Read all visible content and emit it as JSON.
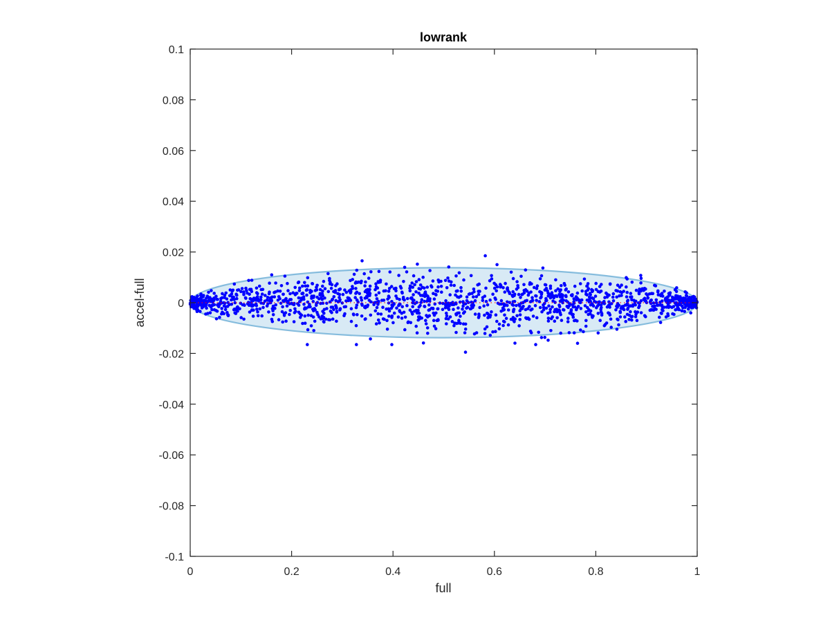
{
  "chart_data": {
    "type": "scatter",
    "title": "lowrank",
    "xlabel": "full",
    "ylabel": "accel-full",
    "xlim": [
      0,
      1
    ],
    "ylim": [
      -0.1,
      0.1
    ],
    "x_ticks": [
      0,
      0.2,
      0.4,
      0.6,
      0.8,
      1
    ],
    "x_tick_labels": [
      "0",
      "0.2",
      "0.4",
      "0.6",
      "0.8",
      "1"
    ],
    "y_ticks": [
      0.1,
      0.08,
      0.06,
      0.04,
      0.02,
      0,
      -0.02,
      -0.04,
      -0.06,
      -0.08,
      -0.1
    ],
    "y_tick_labels": [
      "0.1",
      "0.08",
      "0.06",
      "0.04",
      "0.02",
      "0",
      "-0.02",
      "-0.04",
      "-0.06",
      "-0.08",
      "-0.1"
    ],
    "grid": false,
    "box": true,
    "reference_line": {
      "y": 0,
      "style": "dotted",
      "color": "#ff0000"
    },
    "confidence_ellipse": {
      "center": [
        0.5,
        0
      ],
      "x_semi_axis": 0.5,
      "y_semi_axis": 0.0138,
      "fill": "#d6e9f5",
      "stroke": "#7fb9dc"
    },
    "series": [
      {
        "marker_color": "#0000ff",
        "marker": "filled-dot",
        "point_count": 1600,
        "distribution": "residual y spread proportional to sqrt(x(1-x)), max |y| approx 0.019",
        "notable_points": [
          [
            0.582,
            0.0185
          ],
          [
            0.543,
            -0.0195
          ],
          [
            0.231,
            -0.0165
          ],
          [
            0.448,
            0.0152
          ],
          [
            0.764,
            -0.016
          ]
        ]
      }
    ]
  }
}
